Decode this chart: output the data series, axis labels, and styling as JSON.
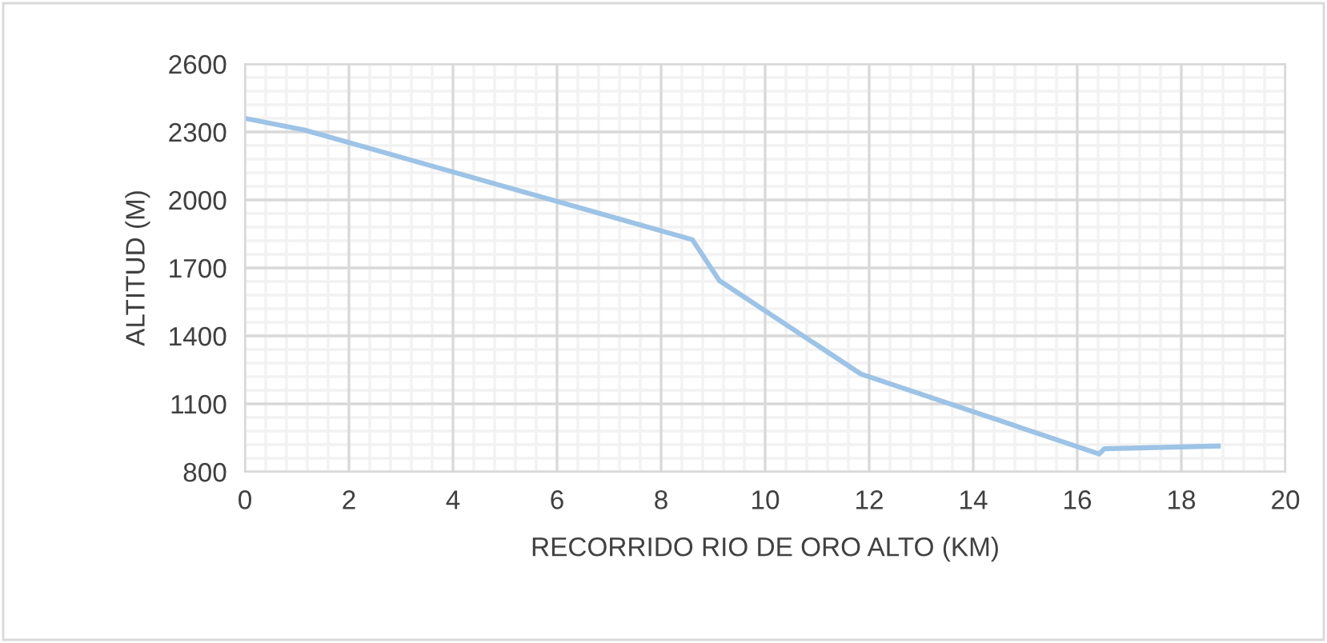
{
  "chart_data": {
    "type": "line",
    "xlabel": "RECORRIDO RIO DE ORO ALTO (KM)",
    "ylabel": "ALTITUD (M)",
    "series": [
      {
        "color": "#9dc3e6",
        "x": [
          0,
          1.14,
          8.6,
          9.12,
          11.84,
          16.42,
          16.52,
          18.71
        ],
        "values": [
          2360,
          2309,
          1825,
          1644,
          1232,
          879,
          902,
          914
        ]
      }
    ],
    "xlim": [
      0,
      20
    ],
    "xticks": [
      0,
      2,
      4,
      6,
      8,
      10,
      12,
      14,
      16,
      18,
      20
    ],
    "ylim": [
      800,
      2600
    ],
    "yticks": [
      800,
      1100,
      1400,
      1700,
      2000,
      2300,
      2600
    ],
    "grid": true,
    "legend": false,
    "marker": "none",
    "line_style": "solid"
  }
}
